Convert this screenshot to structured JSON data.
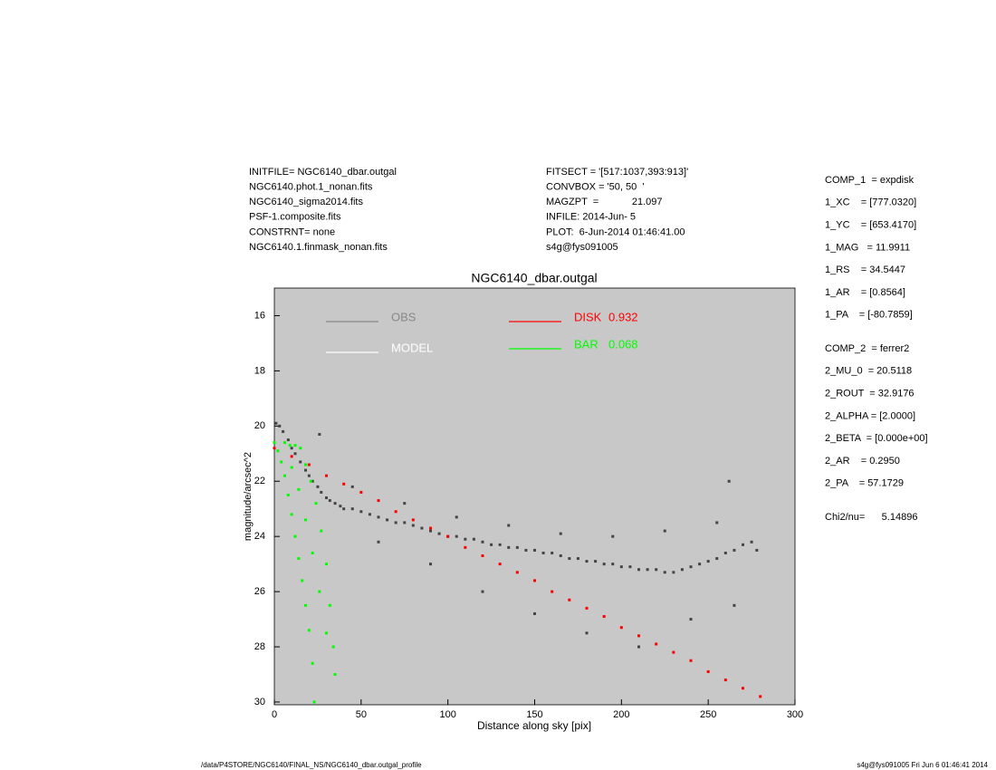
{
  "info": {
    "left": [
      "INITFILE= NGC6140_dbar.outgal",
      "NGC6140.phot.1_nonan.fits",
      "NGC6140_sigma2014.fits",
      "PSF-1.composite.fits",
      "CONSTRNT= none",
      "NGC6140.1.finmask_nonan.fits"
    ],
    "middle": [
      "FITSECT = '[517:1037,393:913]'",
      "CONVBOX = '50, 50  '",
      "MAGZPT  =            21.097",
      "INFILE: 2014-Jun- 5",
      "PLOT:  6-Jun-2014 01:46:41.00",
      "s4g@fys091005"
    ],
    "right": [
      [
        "COMP_1  = expdisk",
        "1_XC    = [777.0320]",
        "1_YC    = [653.4170]",
        "1_MAG   = 11.9911",
        "1_RS    = 34.5447",
        "1_AR    = [0.8564]",
        "1_PA    = [-80.7859]"
      ],
      [
        "COMP_2  = ferrer2",
        "2_MU_0  = 20.5118",
        "2_ROUT  = 32.9176",
        "2_ALPHA = [2.0000]",
        "2_BETA  = [0.000e+00]",
        "2_AR    = 0.2950",
        "2_PA    = 57.1729"
      ],
      [
        "Chi2/nu=      5.14896"
      ]
    ],
    "footer_left": "/data/P4STORE/NGC6140/FINAL_NS/NGC6140_dbar.outgal_profile",
    "footer_right": "s4g@fys091005  Fri Jun  6 01:46:41 2014"
  },
  "chart_data": {
    "type": "scatter",
    "title": "NGC6140_dbar.outgal",
    "x_label": "Distance along sky [pix]",
    "y_label": "magnitude/arcsec^2",
    "xlim": [
      0,
      300
    ],
    "ylim": [
      15,
      30.1
    ],
    "y_inverted": true,
    "xticks": [
      0,
      50,
      100,
      150,
      200,
      250,
      300
    ],
    "yticks": [
      16,
      18,
      20,
      22,
      24,
      26,
      28,
      30
    ],
    "background": "#c8c8c8",
    "series": [
      {
        "name": "OBS",
        "color": "#888888",
        "marker_color": "#444444",
        "x": [
          1,
          3,
          5,
          8,
          10,
          12,
          15,
          18,
          20,
          22,
          25,
          27,
          30,
          32,
          35,
          38,
          40,
          45,
          50,
          55,
          60,
          65,
          70,
          75,
          80,
          85,
          90,
          95,
          100,
          105,
          110,
          115,
          120,
          125,
          130,
          135,
          140,
          145,
          150,
          155,
          160,
          165,
          170,
          175,
          180,
          185,
          190,
          195,
          200,
          205,
          210,
          215,
          220,
          225,
          230,
          235,
          240,
          245,
          250,
          255,
          260,
          265,
          270,
          275,
          278,
          60,
          90,
          120,
          150,
          180,
          210,
          240,
          265,
          45,
          75,
          105,
          135,
          165,
          195,
          225,
          255,
          26,
          262
        ],
        "values": [
          19.9,
          20.0,
          20.2,
          20.5,
          20.8,
          21.0,
          21.3,
          21.6,
          21.8,
          22.0,
          22.2,
          22.4,
          22.6,
          22.7,
          22.8,
          22.9,
          23.0,
          23.0,
          23.1,
          23.2,
          23.3,
          23.4,
          23.5,
          23.5,
          23.6,
          23.7,
          23.8,
          23.9,
          24.0,
          24.0,
          24.1,
          24.1,
          24.2,
          24.3,
          24.3,
          24.4,
          24.4,
          24.5,
          24.5,
          24.6,
          24.6,
          24.7,
          24.8,
          24.8,
          24.9,
          24.9,
          25.0,
          25.0,
          25.1,
          25.1,
          25.2,
          25.2,
          25.2,
          25.3,
          25.3,
          25.2,
          25.1,
          25.0,
          24.9,
          24.8,
          24.6,
          24.5,
          24.3,
          24.2,
          24.5,
          24.2,
          25.0,
          26.0,
          26.8,
          27.5,
          28.0,
          27.0,
          26.5,
          22.2,
          22.8,
          23.3,
          23.6,
          23.9,
          24.0,
          23.8,
          23.5,
          20.3,
          22.0
        ]
      },
      {
        "name": "MODEL",
        "color": "#ffffff",
        "x": [],
        "values": []
      },
      {
        "name": "DISK",
        "fraction": 0.932,
        "color": "#ff0000",
        "x": [
          0,
          10,
          20,
          30,
          40,
          50,
          60,
          70,
          80,
          90,
          100,
          110,
          120,
          130,
          140,
          150,
          160,
          170,
          180,
          190,
          200,
          210,
          220,
          230,
          240,
          250,
          260,
          270,
          280
        ],
        "values": [
          20.8,
          21.1,
          21.4,
          21.8,
          22.1,
          22.4,
          22.7,
          23.1,
          23.4,
          23.7,
          24.0,
          24.4,
          24.7,
          25.0,
          25.3,
          25.6,
          26.0,
          26.3,
          26.6,
          26.9,
          27.3,
          27.6,
          27.9,
          28.2,
          28.5,
          28.9,
          29.2,
          29.5,
          29.8
        ]
      },
      {
        "name": "BAR",
        "fraction": 0.068,
        "color": "#00ff00",
        "x": [
          0,
          2,
          4,
          6,
          8,
          10,
          12,
          14,
          16,
          18,
          20,
          22,
          23,
          6,
          9,
          12,
          15,
          18,
          21,
          24,
          27,
          30,
          32,
          34,
          35,
          10,
          14,
          18,
          22,
          26,
          30
        ],
        "values": [
          20.6,
          20.9,
          21.3,
          21.8,
          22.5,
          23.2,
          24.0,
          24.8,
          25.6,
          26.5,
          27.4,
          28.6,
          30.0,
          20.6,
          20.7,
          20.7,
          20.8,
          21.4,
          22.0,
          22.8,
          23.8,
          25.0,
          26.5,
          28.0,
          29.0,
          21.5,
          22.3,
          23.4,
          24.6,
          26.0,
          27.5
        ]
      }
    ]
  }
}
